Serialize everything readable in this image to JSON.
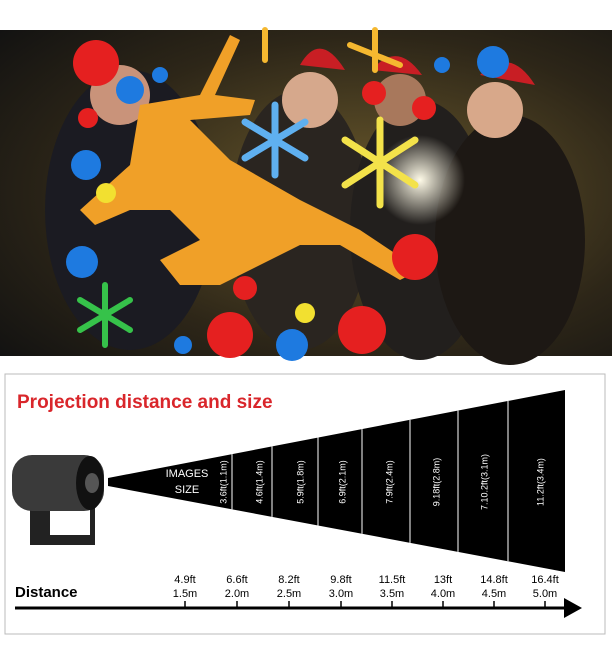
{
  "title": "Projection distance and size",
  "image_size_label": [
    "IMAGES",
    "SIZE"
  ],
  "sizes": [
    "3.6ft(1.1m)",
    "4.6ft(1.4m)",
    "5.9ft(1.8m)",
    "6.9ft(2.1m)",
    "7.9ft(2.4m)",
    "9.18ft(2.8m)",
    "7.10.2ft(3.1m)",
    "11.2ft(3.4m)"
  ],
  "distance_label": "Distance",
  "distances": [
    {
      "ft": "4.9ft",
      "m": "1.5m"
    },
    {
      "ft": "6.6ft",
      "m": "2.0m"
    },
    {
      "ft": "8.2ft",
      "m": "2.5m"
    },
    {
      "ft": "9.8ft",
      "m": "3.0m"
    },
    {
      "ft": "11.5ft",
      "m": "3.5m"
    },
    {
      "ft": "13ft",
      "m": "4.0m"
    },
    {
      "ft": "14.8ft",
      "m": "4.5m"
    },
    {
      "ft": "16.4ft",
      "m": "5.0m"
    }
  ]
}
